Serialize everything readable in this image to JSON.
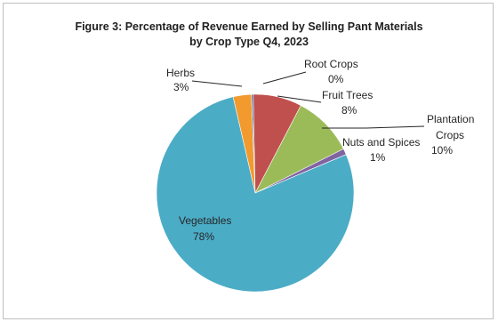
{
  "chart_data": {
    "type": "pie",
    "title_lines": [
      "Figure 3: Percentage of Revenue Earned by Selling Pant Materials",
      "by Crop Type Q4, 2023"
    ],
    "slices": [
      {
        "name": "Herbs",
        "value": 3,
        "value_label": "3%",
        "color": "#f29a2e"
      },
      {
        "name": "Root Crops",
        "value": 0.3,
        "value_label": "0%",
        "color": "#4a6fa5"
      },
      {
        "name": "Fruit Trees",
        "value": 8,
        "value_label": "8%",
        "color": "#c0504d"
      },
      {
        "name": "Plantation Crops",
        "value": 10,
        "value_label": "10%",
        "color": "#9bbb59"
      },
      {
        "name": "Nuts and Spices",
        "value": 1,
        "value_label": "1%",
        "color": "#8064a2"
      },
      {
        "name": "Vegetables",
        "value": 78,
        "value_label": "78%",
        "color": "#4bacc6"
      }
    ],
    "legend": "none"
  }
}
